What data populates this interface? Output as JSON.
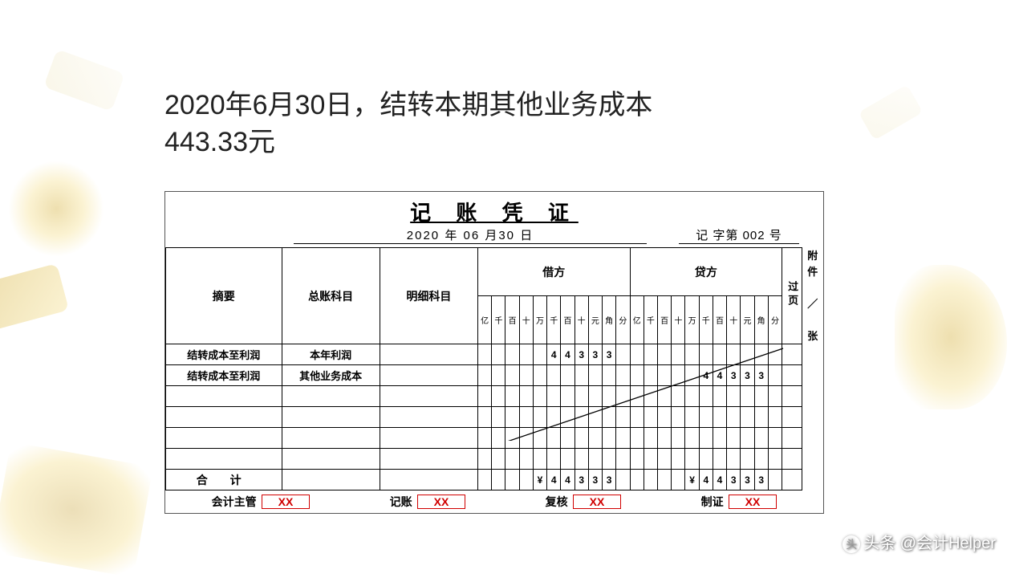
{
  "description": {
    "line1": "2020年6月30日，结转本期其他业务成本",
    "line2": "443.33元"
  },
  "voucher": {
    "title": "记 账 凭 证",
    "date": "2020 年 06 月30 日",
    "number_label": "记 字第 002 号",
    "headers": {
      "summary": "摘要",
      "general_account": "总账科目",
      "sub_account": "明细科目",
      "debit": "借方",
      "credit": "贷方",
      "page": "过页",
      "amount_units": [
        "亿",
        "千",
        "百",
        "十",
        "万",
        "千",
        "百",
        "十",
        "元",
        "角",
        "分"
      ]
    },
    "attachment_label": "附件／张",
    "rows": [
      {
        "summary": "结转成本至利润",
        "general_account": "本年利润",
        "sub_account": "",
        "debit": [
          "",
          "",
          "",
          "",
          "",
          "4",
          "4",
          "3",
          "3",
          "3",
          ""
        ],
        "credit": [
          "",
          "",
          "",
          "",
          "",
          "",
          "",
          "",
          "",
          "",
          ""
        ]
      },
      {
        "summary": "结转成本至利润",
        "general_account": "其他业务成本",
        "sub_account": "",
        "debit": [
          "",
          "",
          "",
          "",
          "",
          "",
          "",
          "",
          "",
          "",
          ""
        ],
        "credit": [
          "",
          "",
          "",
          "",
          "",
          "4",
          "4",
          "3",
          "3",
          "3",
          ""
        ]
      },
      {
        "summary": "",
        "general_account": "",
        "sub_account": "",
        "debit": [
          "",
          "",
          "",
          "",
          "",
          "",
          "",
          "",
          "",
          "",
          ""
        ],
        "credit": [
          "",
          "",
          "",
          "",
          "",
          "",
          "",
          "",
          "",
          "",
          ""
        ]
      },
      {
        "summary": "",
        "general_account": "",
        "sub_account": "",
        "debit": [
          "",
          "",
          "",
          "",
          "",
          "",
          "",
          "",
          "",
          "",
          ""
        ],
        "credit": [
          "",
          "",
          "",
          "",
          "",
          "",
          "",
          "",
          "",
          "",
          ""
        ]
      },
      {
        "summary": "",
        "general_account": "",
        "sub_account": "",
        "debit": [
          "",
          "",
          "",
          "",
          "",
          "",
          "",
          "",
          "",
          "",
          ""
        ],
        "credit": [
          "",
          "",
          "",
          "",
          "",
          "",
          "",
          "",
          "",
          "",
          ""
        ]
      },
      {
        "summary": "",
        "general_account": "",
        "sub_account": "",
        "debit": [
          "",
          "",
          "",
          "",
          "",
          "",
          "",
          "",
          "",
          "",
          ""
        ],
        "credit": [
          "",
          "",
          "",
          "",
          "",
          "",
          "",
          "",
          "",
          "",
          ""
        ]
      }
    ],
    "total": {
      "label": "合 计",
      "debit": [
        "",
        "",
        "",
        "",
        "¥",
        "4",
        "4",
        "3",
        "3",
        "3",
        ""
      ],
      "credit": [
        "",
        "",
        "",
        "",
        "¥",
        "4",
        "4",
        "3",
        "3",
        "3",
        ""
      ]
    },
    "footer": {
      "supervisor_label": "会计主管",
      "supervisor": "XX",
      "bookkeeper_label": "记账",
      "bookkeeper": "XX",
      "reviewer_label": "复核",
      "reviewer": "XX",
      "preparer_label": "制证",
      "preparer": "XX"
    }
  },
  "watermark": "头条 @会计Helper",
  "style": {
    "text_color": "#222222",
    "border_color": "#000000",
    "stamp_color": "#d00000",
    "background": "#ffffff"
  }
}
